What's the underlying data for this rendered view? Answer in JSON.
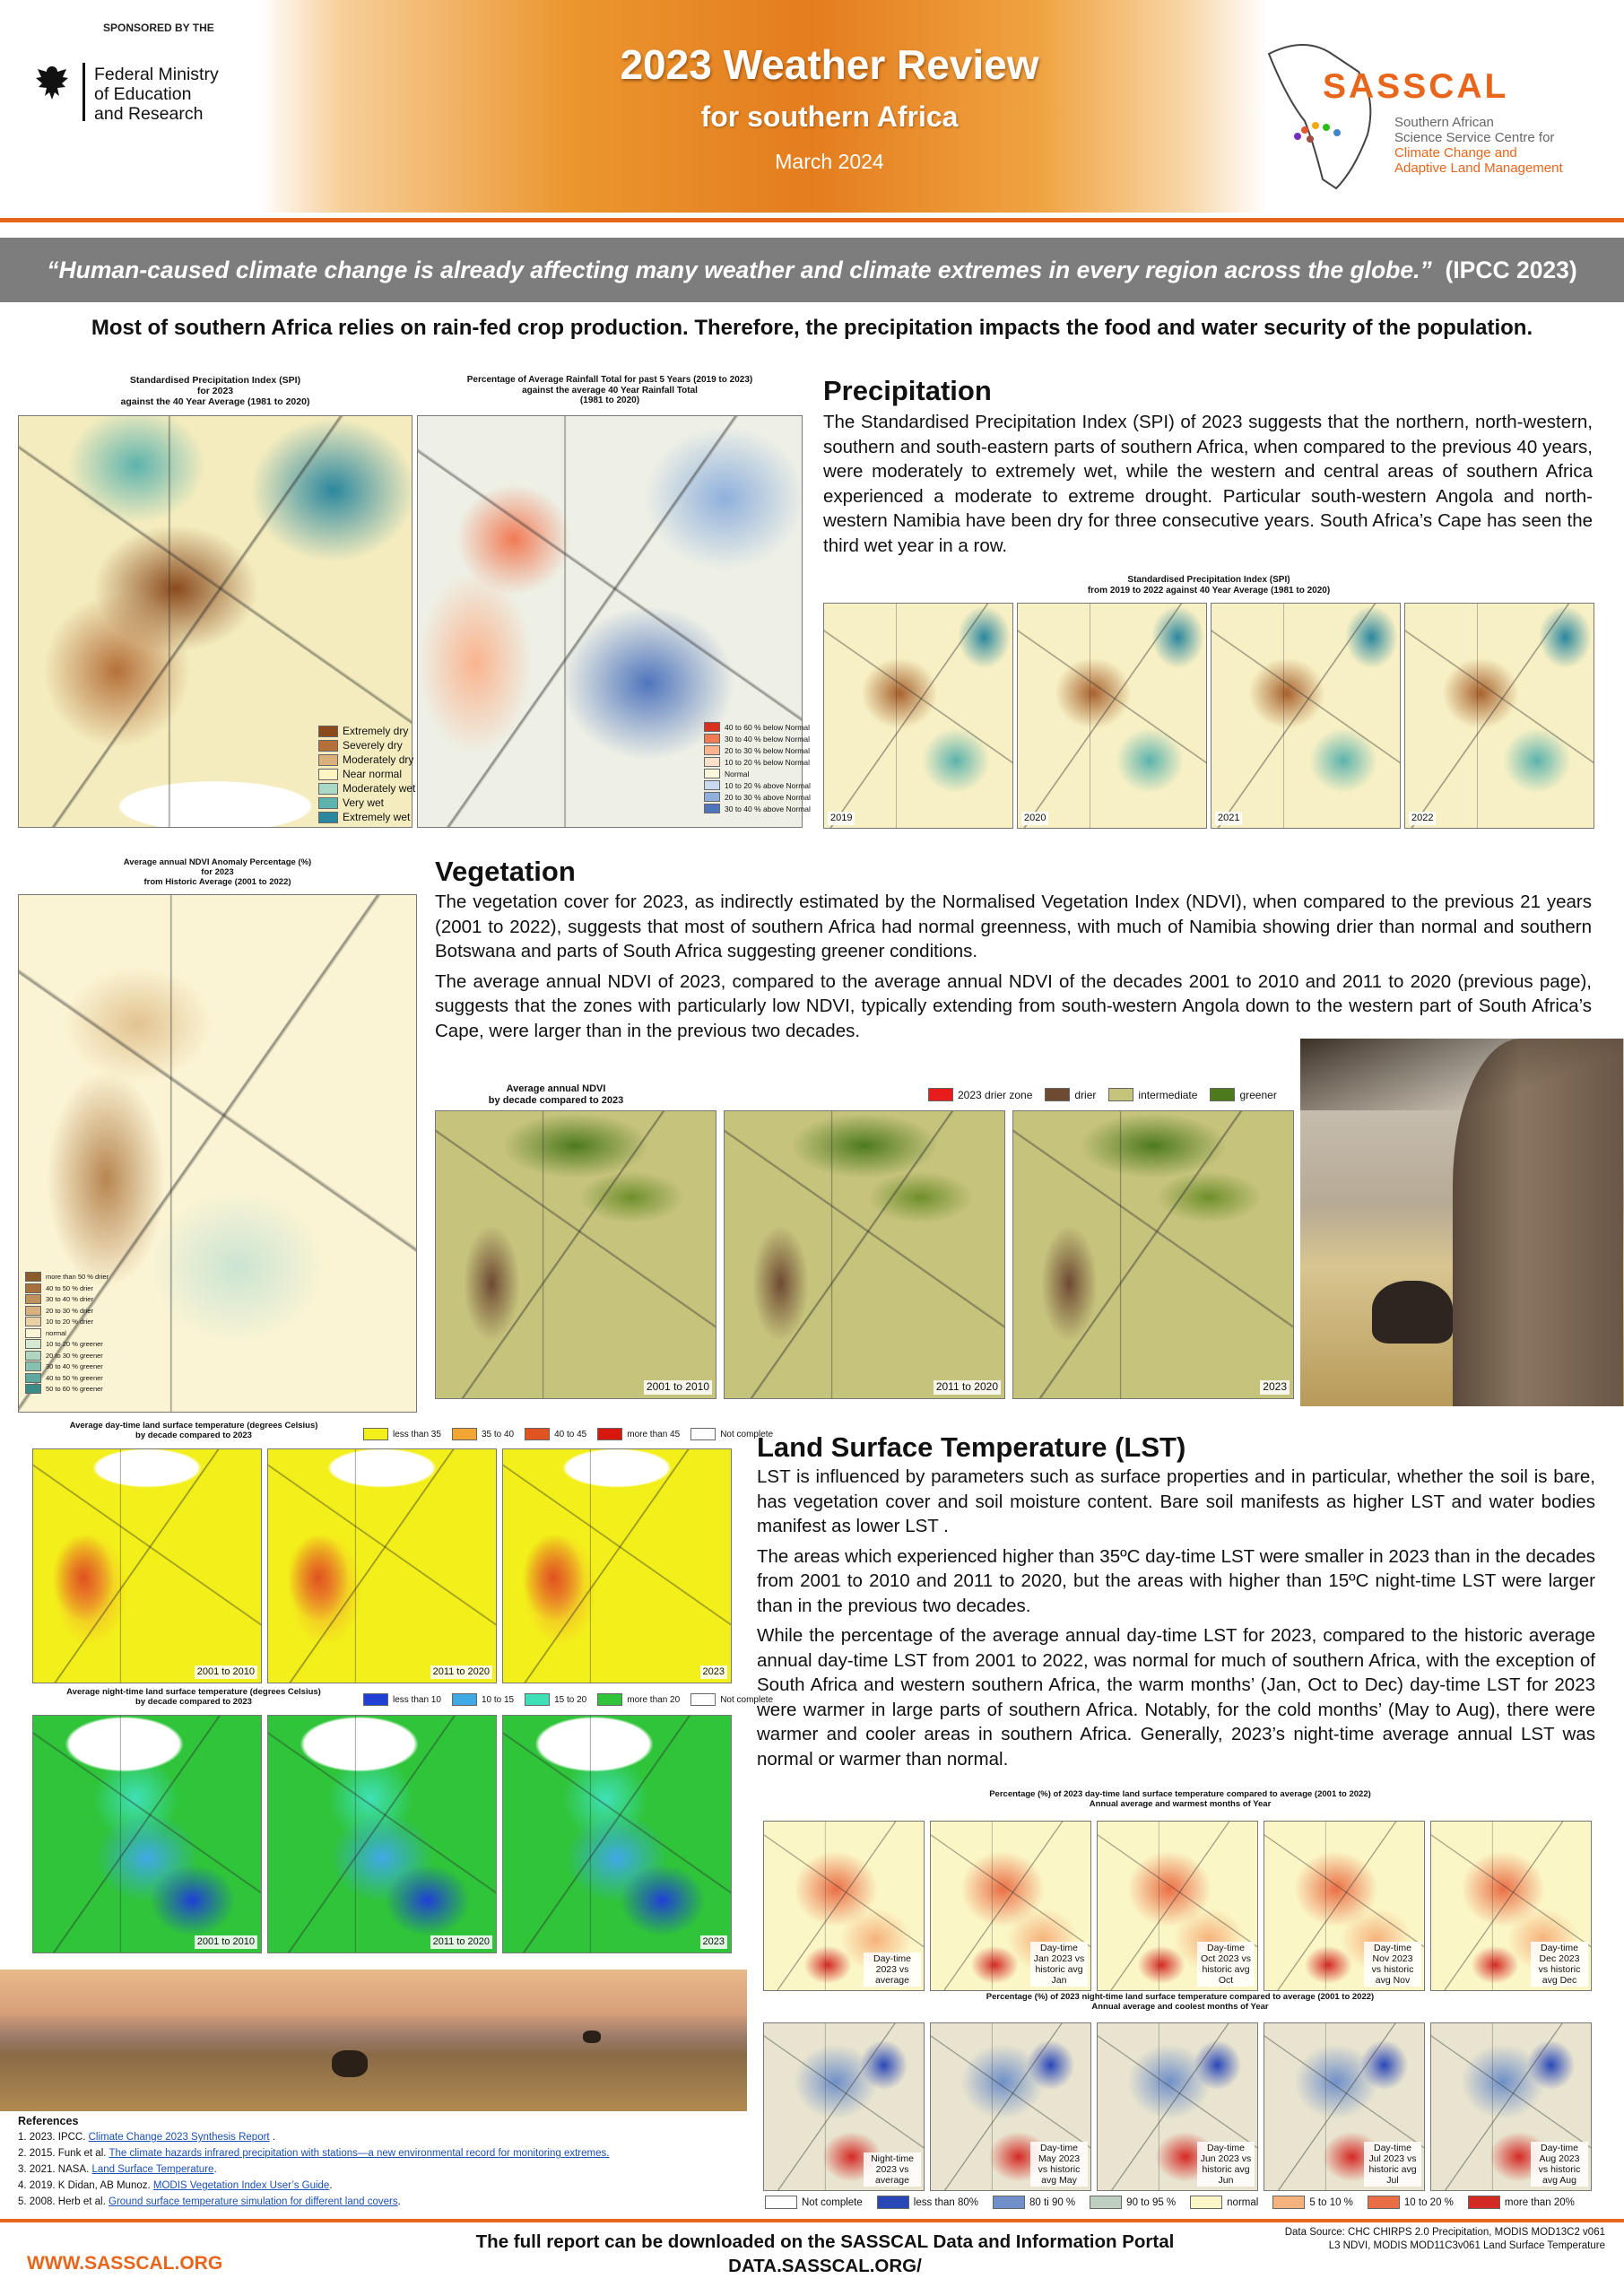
{
  "header": {
    "sponsor_label": "SPONSORED BY THE",
    "sponsor_name": [
      "Federal Ministry",
      "of Education",
      "and Research"
    ],
    "title": "2023 Weather Review",
    "subtitle": "for southern Africa",
    "date": "March 2024",
    "org_name": "SASSCAL",
    "org_full": [
      "Southern African",
      "Science Service Centre for",
      "Climate Change and",
      "Adaptive Land Management"
    ]
  },
  "quote": {
    "text": "“Human-caused climate change is already affecting many weather and climate extremes in every region across the globe.”",
    "source": "(IPCC 2023)"
  },
  "intro": "Most of southern Africa relies on rain-fed crop production. Therefore, the precipitation impacts  the food and water security of the population.",
  "precipitation": {
    "heading": "Precipitation",
    "paragraphs": [
      "The Standardised Precipitation Index (SPI) of 2023 suggests that the northern, north-western, southern and south-eastern parts of southern Africa,  when compared to the previous 40 years, were moderately to extremely wet, while the western and central areas of southern Africa experienced a moderate to extreme drought. Particular south-western Angola and north-western Namibia have been dry for three consecutive years. South Africa’s Cape has seen the third wet year in a row."
    ],
    "spi_2023": {
      "title": [
        "Standardised Precipitation Index (SPI)",
        "for 2023",
        "against the 40 Year Average (1981 to 2020)"
      ],
      "legend": [
        {
          "label": "Extremely dry",
          "color": "#8a4a1c"
        },
        {
          "label": "Severely dry",
          "color": "#b5703a"
        },
        {
          "label": "Moderately dry",
          "color": "#dcb07c"
        },
        {
          "label": "Near normal",
          "color": "#fbf6c4"
        },
        {
          "label": "Moderately wet",
          "color": "#a9d8c6"
        },
        {
          "label": "Very wet",
          "color": "#5db3ad"
        },
        {
          "label": "Extremely wet",
          "color": "#2b879e"
        }
      ]
    },
    "rainfall_5yr": {
      "title": [
        "Percentage of Average Rainfall Total for past 5 Years (2019 to 2023)",
        "against the average 40 Year Rainfall Total",
        "(1981 to 2020)"
      ],
      "legend": [
        {
          "label": "40 to 60 % below Normal",
          "color": "#d7301f"
        },
        {
          "label": "30 to 40 % below Normal",
          "color": "#f07b55"
        },
        {
          "label": "20 to 30 % below Normal",
          "color": "#f9b48f"
        },
        {
          "label": "10 to 20 % below Normal",
          "color": "#fde0c9"
        },
        {
          "label": "Normal",
          "color": "#fbf7dc"
        },
        {
          "label": "10 to 20 % above Normal",
          "color": "#c9d9ee"
        },
        {
          "label": "20 to 30 % above Normal",
          "color": "#8fb0dc"
        },
        {
          "label": "30 to 40 % above Normal",
          "color": "#4f75bd"
        }
      ]
    },
    "spi_series": {
      "title": [
        "Standardised Precipitation Index (SPI)",
        "from 2019 to 2022 against 40 Year Average (1981 to 2020)"
      ],
      "panels": [
        "2019",
        "2020",
        "2021",
        "2022"
      ]
    }
  },
  "vegetation": {
    "heading": "Vegetation",
    "paragraphs": [
      "The vegetation cover for 2023, as indirectly estimated by the Normalised Vegetation Index (NDVI), when compared to the previous 21 years (2001 to 2022), suggests that most of southern Africa had normal greenness, with much of Namibia showing drier than normal and southern Botswana and parts of South Africa suggesting greener conditions.",
      "The average annual NDVI of 2023, compared to the average annual NDVI of the decades 2001 to 2010 and 2011 to 2020 (previous page), suggests that the zones with particularly low NDVI, typically extending from south-western Angola down to the western part of South Africa’s Cape, were larger than in the previous two decades."
    ],
    "ndvi_anomaly": {
      "title": [
        "Average annual NDVI Anomaly Percentage (%)",
        "for 2023",
        "from Historic Average (2001 to 2022)"
      ],
      "legend": [
        {
          "label": "more than 50 % drier",
          "color": "#8c5a2b"
        },
        {
          "label": "40 to 50 % drier",
          "color": "#a7713d"
        },
        {
          "label": "30 to 40 % drier",
          "color": "#c18f5a"
        },
        {
          "label": "20 to 30 % drier",
          "color": "#d8b07f"
        },
        {
          "label": "10 to 20 % drier",
          "color": "#ead0a5"
        },
        {
          "label": "normal",
          "color": "#fbf5d6"
        },
        {
          "label": "10 to 20 % greener",
          "color": "#d5e8d0"
        },
        {
          "label": "20 to 30 % greener",
          "color": "#b0d6c2"
        },
        {
          "label": "30 to 40 % greener",
          "color": "#86c1b0"
        },
        {
          "label": "40 to 50 % greener",
          "color": "#5ea99d"
        },
        {
          "label": "50 to 60 % greener",
          "color": "#3a8d86"
        }
      ]
    },
    "ndvi_decades": {
      "title": [
        "Average annual NDVI",
        "by decade compared to 2023"
      ],
      "legend": [
        {
          "label": "2023 drier zone",
          "color": "#e81c1c"
        },
        {
          "label": "drier",
          "color": "#6e4a33"
        },
        {
          "label": "intermediate",
          "color": "#c6c37d"
        },
        {
          "label": "greener",
          "color": "#4e7a1e"
        }
      ],
      "panels": [
        "2001 to 2010",
        "2011 to 2020",
        "2023"
      ]
    }
  },
  "lst": {
    "heading": "Land Surface Temperature (LST)",
    "paragraphs": [
      "LST is influenced by parameters such as surface properties and in particular, whether the soil is bare, has vegetation cover and soil moisture content. Bare soil manifests as higher LST and water bodies manifest as lower LST .",
      "The areas which experienced higher than 35ºC day-time LST were smaller in 2023 than in the decades from 2001 to 2010 and 2011 to 2020, but the areas with higher than 15ºC night-time LST were larger than in the previous two decades.",
      "While the percentage of the average annual day-time LST for 2023, compared to the historic average annual day-time LST from 2001 to 2022, was normal for much of southern Africa, with the exception of South Africa and western southern Africa, the warm months’ (Jan, Oct to Dec) day-time LST for 2023 were warmer in large parts of southern Africa. Notably, for the cold months’ (May to Aug), there were warmer and cooler areas in southern Africa. Generally, 2023’s night-time average annual LST was normal or warmer than normal."
    ],
    "day_decades": {
      "title": [
        "Average day-time land surface temperature (degrees Celsius)",
        "by decade compared to 2023"
      ],
      "legend": [
        {
          "label": "less than 35",
          "color": "#f3ef1a"
        },
        {
          "label": "35 to 40",
          "color": "#f2a531"
        },
        {
          "label": "40 to 45",
          "color": "#e0521f"
        },
        {
          "label": "more than 45",
          "color": "#d8180f"
        },
        {
          "label": "Not complete",
          "color": "#ffffff"
        }
      ],
      "panels": [
        "2001 to 2010",
        "2011 to 2020",
        "2023"
      ]
    },
    "night_decades": {
      "title": [
        "Average night-time land surface temperature (degrees Celsius)",
        "by decade compared to 2023"
      ],
      "legend": [
        {
          "label": "less than 10",
          "color": "#1f3fd6"
        },
        {
          "label": "10 to 15",
          "color": "#3fa9e6"
        },
        {
          "label": "15 to 20",
          "color": "#3fe0b8"
        },
        {
          "label": "more than 20",
          "color": "#2fc43a"
        },
        {
          "label": "Not complete",
          "color": "#ffffff"
        }
      ],
      "panels": [
        "2001 to 2010",
        "2011 to 2020",
        "2023"
      ]
    },
    "day_percent": {
      "title": [
        "Percentage (%) of 2023 day-time land surface temperature compared to average (2001 to 2022)",
        "Annual average and warmest months of Year"
      ],
      "panels": [
        "Day-time 2023 vs average",
        "Day-time Jan 2023 vs historic avg Jan",
        "Day-time Oct 2023 vs historic avg Oct",
        "Day-time Nov 2023 vs historic avg Nov",
        "Day-time Dec 2023 vs historic avg Dec"
      ]
    },
    "night_percent": {
      "title": [
        "Percentage (%) of 2023 night-time land surface temperature compared to average (2001 to 2022)",
        "Annual average and coolest months of Year"
      ],
      "panels": [
        "Night-time 2023 vs average",
        "Day-time May 2023 vs historic avg May",
        "Day-time Jun 2023 vs historic avg Jun",
        "Day-time Jul 2023 vs historic avg Jul",
        "Day-time Aug 2023 vs historic avg Aug"
      ]
    },
    "percent_legend": [
      {
        "label": "Not complete",
        "color": "#ffffff"
      },
      {
        "label": "less than 80%",
        "color": "#2948b8"
      },
      {
        "label": "80 ti 90 %",
        "color": "#6f90c8"
      },
      {
        "label": "90 to 95 %",
        "color": "#bccfc0"
      },
      {
        "label": "normal",
        "color": "#fbf6c6"
      },
      {
        "label": "5 to 10 %",
        "color": "#f6b27c"
      },
      {
        "label": "10 to 20 %",
        "color": "#ea6e45"
      },
      {
        "label": "more than 20%",
        "color": "#d42a24"
      }
    ]
  },
  "references": {
    "heading": "References",
    "items": [
      {
        "text": "1. 2023. IPCC. ",
        "link": "Climate Change 2023 Synthesis Report",
        "tail": " ."
      },
      {
        "text": "2. 2015. Funk et al. ",
        "link": "The climate hazards infrared precipitation with stations—a new environmental record for monitoring extremes."
      },
      {
        "text": "3. 2021. NASA. ",
        "link": "Land Surface Temperature",
        "tail": "."
      },
      {
        "text": "4. 2019. K Didan, AB Munoz. ",
        "link": "MODIS Vegetation Index User’s Guide",
        "tail": "."
      },
      {
        "text": "5. 2008. Herb et al. ",
        "link": "Ground surface temperature simulation for different land covers",
        "tail": "."
      }
    ]
  },
  "footer": {
    "url": "WWW.SASSCAL.ORG",
    "download": [
      "The full report can be downloaded on the SASSCAL Data and Information Portal",
      "DATA.SASSCAL.ORG/"
    ],
    "data_source": "Data Source: CHC CHIRPS 2.0 Precipitation, MODIS MOD13C2 v061 L3 NDVI, MODIS MOD11C3v061 Land Surface Temperature"
  }
}
